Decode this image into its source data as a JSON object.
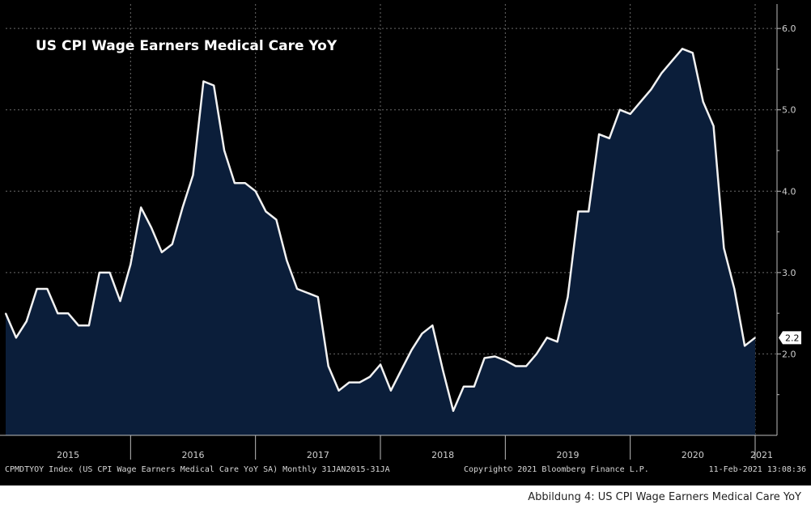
{
  "chart_data": {
    "type": "area",
    "title": "US CPI Wage Earners Medical Care YoY",
    "ylim": [
      1.0,
      6.3
    ],
    "yticks": [
      2.0,
      3.0,
      4.0,
      5.0,
      6.0
    ],
    "ytick_labels": [
      "2.0",
      "3.0",
      "4.0",
      "5.0",
      "6.0"
    ],
    "xticks": [
      "2015",
      "2016",
      "2017",
      "2018",
      "2019",
      "2020",
      "2021"
    ],
    "grid": true,
    "last_value_label": "2.2",
    "x_start": "2015-01",
    "x_end": "2021-01",
    "values": [
      2.5,
      2.2,
      2.4,
      2.8,
      2.8,
      2.5,
      2.5,
      2.35,
      2.35,
      3.0,
      3.0,
      2.65,
      3.1,
      3.8,
      3.55,
      3.25,
      3.35,
      3.8,
      4.2,
      5.35,
      5.3,
      4.5,
      4.1,
      4.1,
      4.0,
      3.75,
      3.65,
      3.15,
      2.8,
      2.75,
      2.7,
      1.85,
      1.55,
      1.65,
      1.65,
      1.72,
      1.87,
      1.55,
      1.8,
      2.05,
      2.25,
      2.35,
      1.8,
      1.3,
      1.6,
      1.6,
      1.95,
      1.97,
      1.92,
      1.85,
      1.85,
      2.0,
      2.2,
      2.15,
      2.7,
      3.75,
      3.75,
      4.7,
      4.65,
      5.0,
      4.95,
      5.1,
      5.25,
      5.45,
      5.6,
      5.75,
      5.7,
      5.1,
      4.8,
      3.3,
      2.8,
      2.1,
      2.2
    ]
  },
  "footer": {
    "source_left": "CPMDTYOY Index (US CPI Wage Earners Medical Care YoY SA) Monthly 31JAN2015-31JA",
    "copyright": "Copyright© 2021 Bloomberg Finance L.P.",
    "timestamp": "11-Feb-2021 13:08:36"
  },
  "caption": "Abbildung 4: US CPI Wage Earners Medical Care YoY",
  "colors": {
    "background": "#000000",
    "area_fill": "#0b1e3a",
    "line": "#f2f2f2",
    "grid": "#6a6a6a"
  }
}
